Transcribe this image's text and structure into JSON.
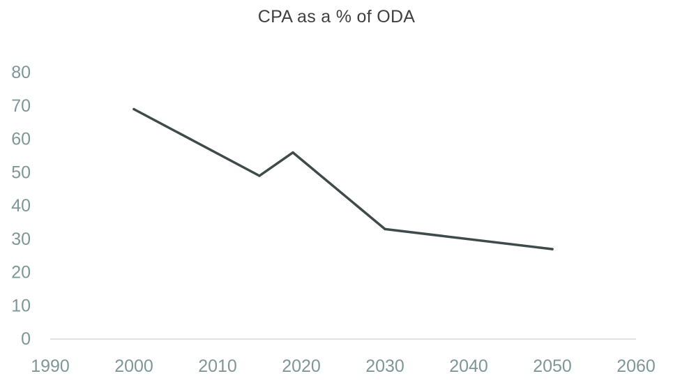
{
  "chart_data": {
    "type": "line",
    "title": "CPA as a % of ODA",
    "xlabel": "",
    "ylabel": "",
    "xlim": [
      1990,
      2060
    ],
    "ylim": [
      0,
      80
    ],
    "xticks": [
      1990,
      2000,
      2010,
      2020,
      2030,
      2040,
      2050,
      2060
    ],
    "yticks": [
      0,
      10,
      20,
      30,
      40,
      50,
      60,
      70,
      80
    ],
    "grid": false,
    "legend": "none",
    "series": [
      {
        "x": [
          2000,
          2015,
          2019,
          2030,
          2050
        ],
        "y": [
          69,
          49,
          56,
          33,
          27
        ]
      }
    ]
  },
  "colors": {
    "line": "#3f4a4a",
    "tick_label": "#7f9696",
    "axis": "#d9d9d9",
    "title": "#404040"
  }
}
